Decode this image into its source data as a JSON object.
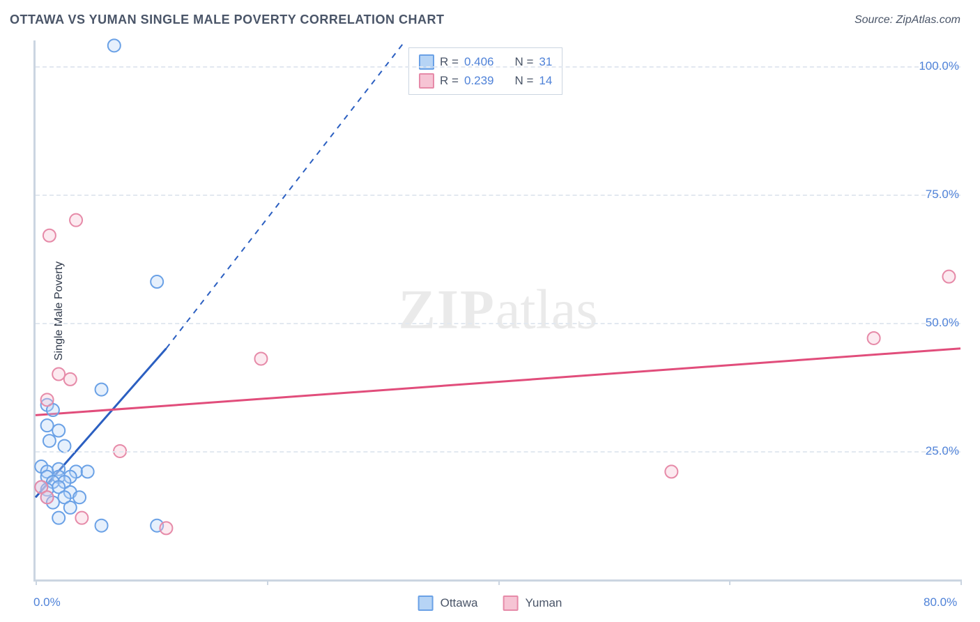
{
  "title": "OTTAWA VS YUMAN SINGLE MALE POVERTY CORRELATION CHART",
  "source": "Source: ZipAtlas.com",
  "y_axis_label": "Single Male Poverty",
  "watermark_a": "ZIP",
  "watermark_b": "atlas",
  "chart": {
    "type": "scatter",
    "xlim": [
      0,
      80
    ],
    "ylim": [
      0,
      105
    ],
    "x_ticks": [
      0,
      20,
      40,
      60,
      80
    ],
    "x_tick_labels": [
      "0.0%",
      "",
      "",
      "",
      "80.0%"
    ],
    "y_gridlines": [
      25,
      50,
      75,
      100
    ],
    "y_tick_labels": [
      "25.0%",
      "50.0%",
      "75.0%",
      "100.0%"
    ],
    "background_color": "#ffffff",
    "grid_color": "#e2e8f0",
    "axis_color": "#cbd5e1",
    "label_color": "#4f82d8",
    "title_color": "#4a5568",
    "marker_radius": 9,
    "marker_stroke_width": 2,
    "marker_fill_opacity": 0.35,
    "line_stroke_width": 3,
    "title_fontsize": 18,
    "tick_fontsize": 17,
    "axis_label_fontsize": 16
  },
  "series": [
    {
      "name": "Ottawa",
      "stroke": "#6aa1e6",
      "fill": "#b6d4f5",
      "line_color": "#2b5fc1",
      "R": "0.406",
      "N": "31",
      "trend": {
        "x1": 0,
        "y1": 16,
        "x2": 11.3,
        "y2": 45,
        "dash_x2": 32,
        "dash_y2": 105
      },
      "points": [
        [
          6.8,
          104
        ],
        [
          10.5,
          58
        ],
        [
          1.0,
          34
        ],
        [
          1.5,
          33
        ],
        [
          5.7,
          37
        ],
        [
          1.0,
          30
        ],
        [
          2.0,
          29
        ],
        [
          1.2,
          27
        ],
        [
          2.5,
          26
        ],
        [
          0.5,
          22
        ],
        [
          1.0,
          21
        ],
        [
          2.0,
          21.5
        ],
        [
          3.5,
          21
        ],
        [
          4.5,
          21
        ],
        [
          1.0,
          20
        ],
        [
          2.0,
          20
        ],
        [
          3.0,
          20
        ],
        [
          1.5,
          19
        ],
        [
          2.5,
          19
        ],
        [
          0.5,
          18
        ],
        [
          1.0,
          17.5
        ],
        [
          2.0,
          18
        ],
        [
          3.0,
          17
        ],
        [
          1.0,
          16
        ],
        [
          2.5,
          16
        ],
        [
          3.8,
          16
        ],
        [
          1.5,
          15
        ],
        [
          3.0,
          14
        ],
        [
          2.0,
          12
        ],
        [
          5.7,
          10.5
        ],
        [
          10.5,
          10.5
        ]
      ]
    },
    {
      "name": "Yuman",
      "stroke": "#e68aa8",
      "fill": "#f6c4d4",
      "line_color": "#e14d7b",
      "R": "0.239",
      "N": "14",
      "trend": {
        "x1": 0,
        "y1": 32,
        "x2": 80,
        "y2": 45
      },
      "points": [
        [
          3.5,
          70
        ],
        [
          1.2,
          67
        ],
        [
          79,
          59
        ],
        [
          72.5,
          47
        ],
        [
          19.5,
          43
        ],
        [
          2.0,
          40
        ],
        [
          3.0,
          39
        ],
        [
          1.0,
          35
        ],
        [
          7.3,
          25
        ],
        [
          55,
          21
        ],
        [
          0.5,
          18
        ],
        [
          1.0,
          16
        ],
        [
          4.0,
          12
        ],
        [
          11.3,
          10
        ]
      ]
    }
  ],
  "legend_top": {
    "rows": [
      {
        "sw_stroke": "#6aa1e6",
        "sw_fill": "#b6d4f5",
        "r_label": "R =",
        "r_val": "0.406",
        "n_label": "N =",
        "n_val": "31"
      },
      {
        "sw_stroke": "#e68aa8",
        "sw_fill": "#f6c4d4",
        "r_label": "R =",
        "r_val": "0.239",
        "n_label": "N =",
        "n_val": "14"
      }
    ]
  },
  "legend_bottom": [
    {
      "sw_stroke": "#6aa1e6",
      "sw_fill": "#b6d4f5",
      "label": "Ottawa"
    },
    {
      "sw_stroke": "#e68aa8",
      "sw_fill": "#f6c4d4",
      "label": "Yuman"
    }
  ]
}
